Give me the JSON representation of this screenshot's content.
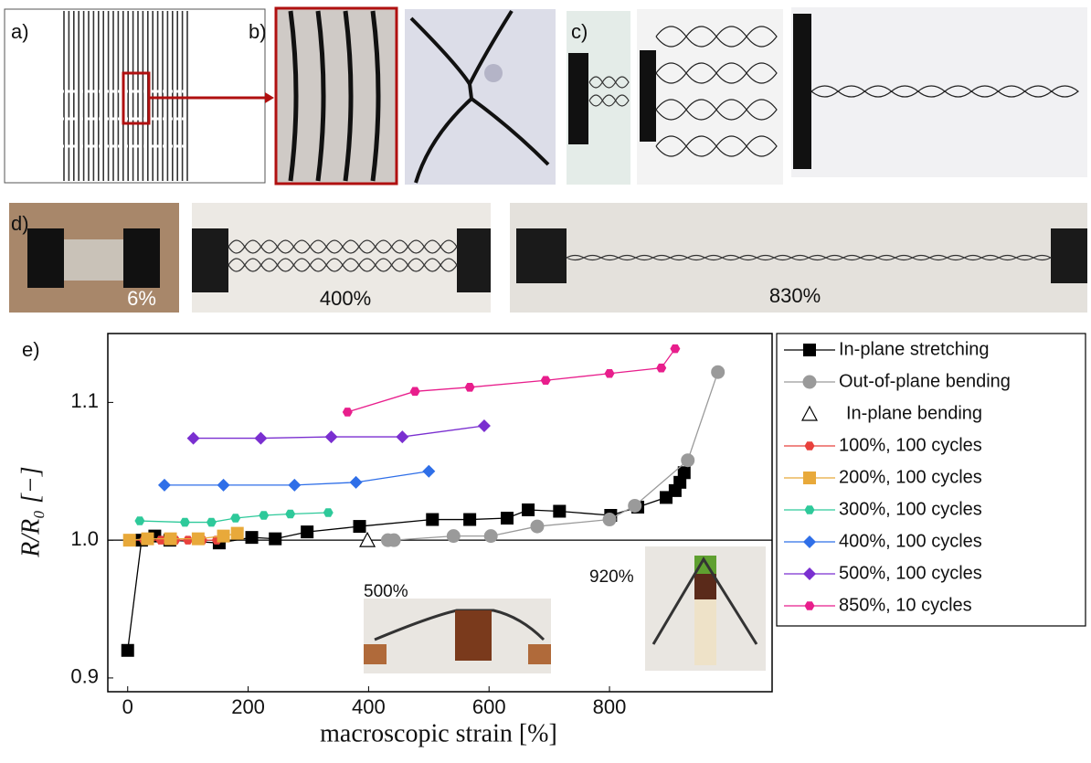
{
  "panels": {
    "a": "a)",
    "b": "b)",
    "c": "c)",
    "d": "d)",
    "e": "e)"
  },
  "photo_labels": [
    "6%",
    "400%",
    "830%"
  ],
  "chart_data": {
    "type": "scatter",
    "xlabel": "macroscopic strain [%]",
    "ylabel": "R/R₀ [−]",
    "xlim": [
      -33,
      1070
    ],
    "ylim": [
      0.89,
      1.15
    ],
    "xticks": [
      0,
      200,
      400,
      600,
      800
    ],
    "yticks": [
      0.9,
      {
        "value": 1,
        "label": "1.0"
      },
      1.1
    ],
    "hline": 1,
    "annotations": [
      "500%",
      "920%"
    ],
    "series": [
      {
        "name": "In-plane stretching",
        "color": "#000000",
        "marker": "square",
        "line": true,
        "x": [
          0,
          23,
          45,
          70,
          152,
          206,
          245,
          298,
          385,
          506,
          568,
          630,
          665,
          717,
          802,
          847,
          894,
          909,
          917,
          924
        ],
        "values": [
          0.92,
          1.0,
          1.003,
          1.0,
          0.998,
          1.002,
          1.001,
          1.006,
          1.01,
          1.015,
          1.015,
          1.016,
          1.022,
          1.021,
          1.018,
          1.024,
          1.031,
          1.036,
          1.042,
          1.049
        ]
      },
      {
        "name": "Out-of-plane bending",
        "color": "#9a9a9a",
        "marker": "circle",
        "line": true,
        "x": [
          432,
          442,
          541,
          603,
          680,
          800,
          842,
          930,
          980
        ],
        "values": [
          1.0,
          1.0,
          1.003,
          1.003,
          1.01,
          1.015,
          1.025,
          1.058,
          1.122
        ]
      },
      {
        "name": "In-plane bending",
        "color": "#000000",
        "marker": "triangle",
        "line": false,
        "x": [
          398
        ],
        "values": [
          1.0
        ]
      },
      {
        "name": "100%, 100 cycles",
        "color": "#e8413c",
        "marker": "hexagon",
        "line": true,
        "x": [
          3,
          27,
          55,
          79,
          100,
          124,
          148
        ],
        "values": [
          1.0,
          1.0,
          1.0,
          1.0,
          1.0,
          1.0,
          1.0
        ]
      },
      {
        "name": "200%, 100 cycles",
        "color": "#e8a93a",
        "marker": "square",
        "line": true,
        "x": [
          3,
          33,
          71,
          117,
          159,
          182
        ],
        "values": [
          1.0,
          1.001,
          1.001,
          1.001,
          1.003,
          1.005
        ]
      },
      {
        "name": "300%, 100 cycles",
        "color": "#2ec99a",
        "marker": "hexagon",
        "line": true,
        "x": [
          20,
          95,
          139,
          179,
          226,
          270,
          333
        ],
        "values": [
          1.014,
          1.013,
          1.013,
          1.016,
          1.018,
          1.019,
          1.02
        ]
      },
      {
        "name": "400%, 100 cycles",
        "color": "#2f6fe8",
        "marker": "diamond",
        "line": true,
        "x": [
          61,
          159,
          277,
          379,
          500
        ],
        "values": [
          1.04,
          1.04,
          1.04,
          1.042,
          1.05
        ]
      },
      {
        "name": "500%, 100 cycles",
        "color": "#7a2fd0",
        "marker": "diamond",
        "line": true,
        "x": [
          109,
          221,
          338,
          456,
          592
        ],
        "values": [
          1.074,
          1.074,
          1.075,
          1.075,
          1.083
        ]
      },
      {
        "name": "850%, 10 cycles",
        "color": "#e81e8c",
        "marker": "hexagon",
        "line": true,
        "x": [
          365,
          477,
          568,
          694,
          800,
          886,
          909
        ],
        "values": [
          1.093,
          1.108,
          1.111,
          1.116,
          1.121,
          1.125,
          1.139
        ]
      }
    ]
  }
}
